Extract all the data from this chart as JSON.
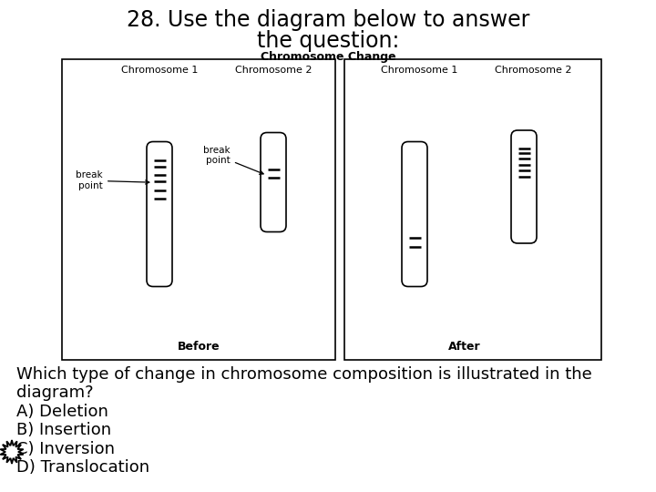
{
  "title_line1": "28. Use the diagram below to answer",
  "title_line2": "the question:",
  "diagram_title": "Chromosome Change",
  "before_label": "Before",
  "after_label": "After",
  "chr1_before": "Chromosome 1",
  "chr2_before": "Chromosome 2",
  "chr1_after": "Chromosome 1",
  "chr2_after": "Chromosome 2",
  "bg_color": "#ffffff",
  "text_color": "#000000"
}
